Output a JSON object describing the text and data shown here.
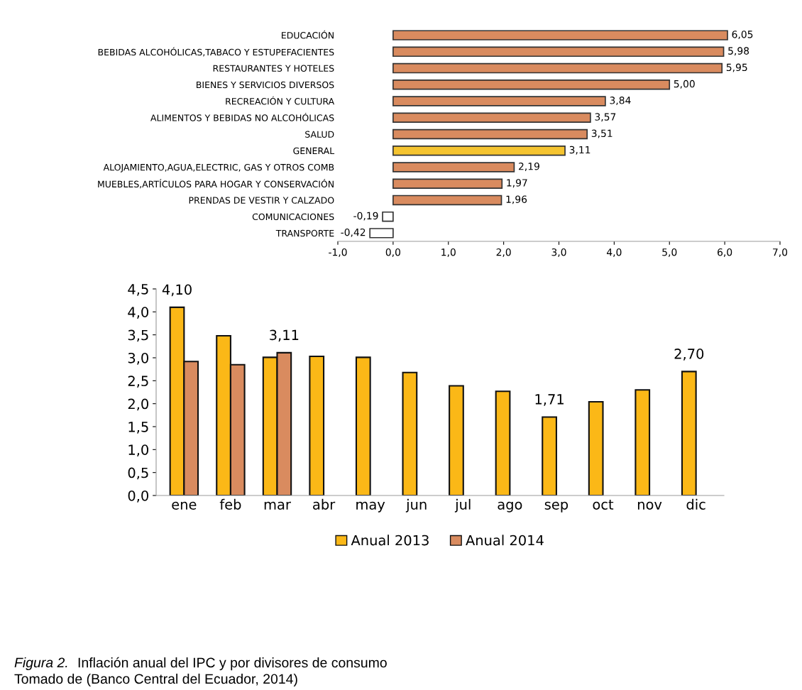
{
  "chart_data": [
    {
      "type": "bar",
      "orientation": "horizontal",
      "categories": [
        "EDUCACIÓN",
        "BEBIDAS ALCOHÓLICAS,TABACO Y ESTUPEFACIENTES",
        "RESTAURANTES Y HOTELES",
        "BIENES Y SERVICIOS DIVERSOS",
        "RECREACIÓN Y CULTURA",
        "ALIMENTOS Y BEBIDAS NO ALCOHÓLICAS",
        "SALUD",
        "GENERAL",
        "ALOJAMIENTO,AGUA,ELECTRIC, GAS Y OTROS COMB",
        "MUEBLES,ARTÍCULOS PARA HOGAR Y CONSERVACIÓN",
        "PRENDAS DE VESTIR Y CALZADO",
        "COMUNICACIONES",
        "TRANSPORTE"
      ],
      "values": [
        6.05,
        5.98,
        5.95,
        5.0,
        3.84,
        3.57,
        3.51,
        3.11,
        2.19,
        1.97,
        1.96,
        -0.19,
        -0.42
      ],
      "value_labels": [
        "6,05",
        "5,98",
        "5,95",
        "5,00",
        "3,84",
        "3,57",
        "3,51",
        "3,11",
        "2,19",
        "1,97",
        "1,96",
        "-0,19",
        "-0,42"
      ],
      "colors": [
        "#d98b5f",
        "#d98b5f",
        "#d98b5f",
        "#d98b5f",
        "#d98b5f",
        "#d98b5f",
        "#d98b5f",
        "#f5c430",
        "#d98b5f",
        "#d98b5f",
        "#d98b5f",
        "#ffffff",
        "#ffffff"
      ],
      "xlim": [
        -1,
        7
      ],
      "xticks": [
        {
          "value": -1,
          "label": "-1,0"
        },
        {
          "value": 0,
          "label": "0,0"
        },
        {
          "value": 1,
          "label": "1,0"
        },
        {
          "value": 2,
          "label": "2,0"
        },
        {
          "value": 3,
          "label": "3,0"
        },
        {
          "value": 4,
          "label": "4,0"
        },
        {
          "value": 5,
          "label": "5,0"
        },
        {
          "value": 6,
          "label": "6,0"
        },
        {
          "value": 7,
          "label": "7,0"
        }
      ],
      "grid": false,
      "legend": false
    },
    {
      "type": "bar",
      "categories": [
        "ene",
        "feb",
        "mar",
        "abr",
        "may",
        "jun",
        "jul",
        "ago",
        "sep",
        "oct",
        "nov",
        "dic"
      ],
      "series": [
        {
          "name": "Anual 2013",
          "color": "#fbb817",
          "values": [
            4.1,
            3.48,
            3.01,
            3.03,
            3.01,
            2.68,
            2.39,
            2.27,
            1.71,
            2.04,
            2.3,
            2.7
          ],
          "value_labels": [
            "4,10",
            null,
            null,
            null,
            null,
            null,
            null,
            null,
            "1,71",
            null,
            null,
            "2,70"
          ]
        },
        {
          "name": "Anual 2014",
          "color": "#d98b5f",
          "values": [
            2.92,
            2.85,
            3.11,
            null,
            null,
            null,
            null,
            null,
            null,
            null,
            null,
            null
          ],
          "value_labels": [
            null,
            null,
            "3,11",
            null,
            null,
            null,
            null,
            null,
            null,
            null,
            null,
            null
          ]
        }
      ],
      "ylim": [
        0,
        4.5
      ],
      "yticks": [
        {
          "value": 0,
          "label": "0,0"
        },
        {
          "value": 0.5,
          "label": "0,5"
        },
        {
          "value": 1,
          "label": "1,0"
        },
        {
          "value": 1.5,
          "label": "1,5"
        },
        {
          "value": 2,
          "label": "2,0"
        },
        {
          "value": 2.5,
          "label": "2,5"
        },
        {
          "value": 3,
          "label": "3,0"
        },
        {
          "value": 3.5,
          "label": "3,5"
        },
        {
          "value": 4,
          "label": "4,0"
        },
        {
          "value": 4.5,
          "label": "4,5"
        }
      ],
      "grid": false,
      "legend": "bottom",
      "annotations": [
        "Figura 2.",
        "Inflación anual del IPC y por divisores de consumo",
        "Tomado de (Banco Central del Ecuador, 2014)"
      ]
    }
  ]
}
